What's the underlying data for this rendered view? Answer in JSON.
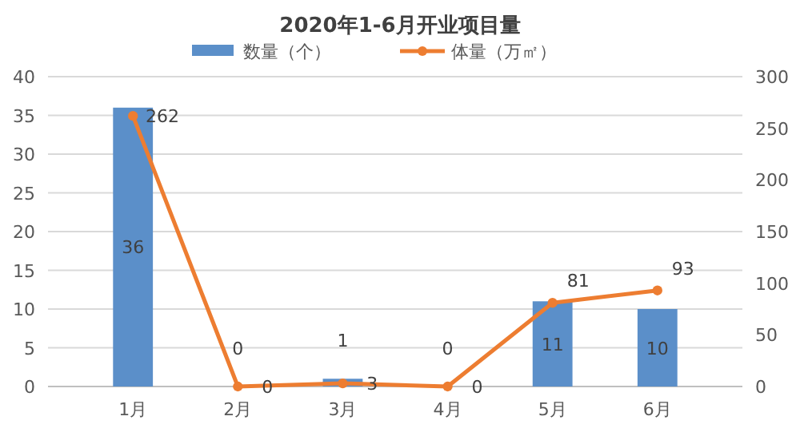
{
  "chart_data": {
    "type": "bar",
    "title": "2020年1-6月开业项目量",
    "categories": [
      "1月",
      "2月",
      "3月",
      "4月",
      "5月",
      "6月"
    ],
    "series": [
      {
        "name": "数量（个）",
        "color": "#5b8fc9",
        "values": [
          36,
          0,
          1,
          0,
          11,
          10
        ]
      },
      {
        "name": "体量（万㎡）",
        "type": "line",
        "axis": "y2",
        "color": "#ed7d31",
        "values": [
          262,
          0,
          3,
          0,
          81,
          93
        ]
      }
    ],
    "ylim": [
      0,
      40
    ],
    "yticks": [
      0,
      5,
      10,
      15,
      20,
      25,
      30,
      35,
      40
    ],
    "y2lim": [
      0,
      300
    ],
    "y2ticks": [
      0,
      50,
      100,
      150,
      200,
      250,
      300
    ],
    "grid": "y",
    "legend": "top",
    "marker": "circle",
    "data_labels": true
  }
}
